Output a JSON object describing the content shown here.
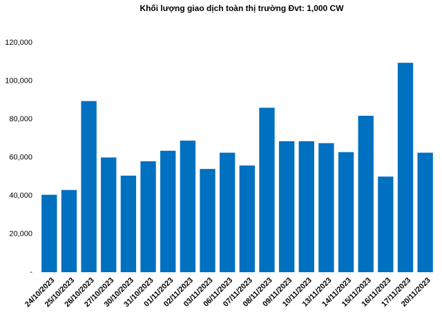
{
  "chart_data": {
    "type": "bar",
    "title": "Khối lượng giao dịch toàn thị trường Đvt: 1,000 CW",
    "categories": [
      "24/10/2023",
      "25/10/2023",
      "26/10/2023",
      "27/10/2023",
      "30/10/2023",
      "31/10/2023",
      "01/11/2023",
      "02/11/2023",
      "03/11/2023",
      "06/11/2023",
      "07/11/2023",
      "08/11/2023",
      "09/11/2023",
      "10/11/2023",
      "13/11/2023",
      "14/11/2023",
      "15/11/2023",
      "16/11/2023",
      "17/11/2023",
      "20/11/2023"
    ],
    "values": [
      40500,
      43000,
      89500,
      60000,
      50500,
      58000,
      63500,
      68800,
      54000,
      62500,
      55800,
      86000,
      68500,
      68500,
      67500,
      62800,
      81800,
      50000,
      109500,
      62500
    ],
    "color": "#0070c0",
    "ylim": [
      0,
      120000
    ],
    "yticks": [
      {
        "value": 0,
        "label": "-"
      },
      {
        "value": 20000,
        "label": "20,000"
      },
      {
        "value": 40000,
        "label": "40,000"
      },
      {
        "value": 60000,
        "label": "60,000"
      },
      {
        "value": 80000,
        "label": "80,000"
      },
      {
        "value": 100000,
        "label": "100,000"
      },
      {
        "value": 120000,
        "label": "120,000"
      }
    ],
    "grid": false
  }
}
